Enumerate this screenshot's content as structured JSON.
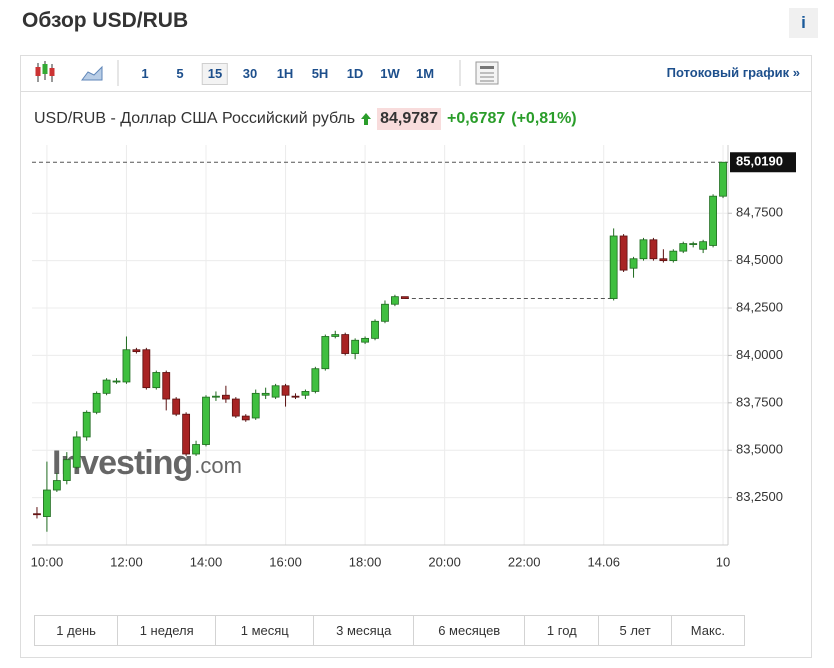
{
  "header": {
    "title": "Обзор USD/RUB",
    "info": "i"
  },
  "toolbar": {
    "intervals": [
      "1",
      "5",
      "15",
      "30",
      "1H",
      "5H",
      "1D",
      "1W",
      "1M"
    ],
    "selected": "15",
    "streaming_link": "Потоковый график »"
  },
  "quote": {
    "name": "USD/RUB - Доллар США Российский рубль",
    "price": "84,9787",
    "change": "+0,6787",
    "change_pct": "(+0,81%)"
  },
  "chart_data": {
    "type": "candlestick",
    "categories": [
      null,
      "10:00",
      null,
      null,
      null,
      null,
      null,
      null,
      null,
      "12:00",
      null,
      null,
      null,
      null,
      null,
      null,
      null,
      "14:00",
      null,
      null,
      null,
      null,
      null,
      null,
      null,
      "16:00",
      null,
      null,
      null,
      null,
      null,
      null,
      null,
      "18:00",
      null,
      null,
      null,
      null,
      null,
      null,
      null,
      "20:00",
      null,
      null,
      null,
      null,
      null,
      null,
      null,
      "22:00",
      null,
      null,
      null,
      null,
      null,
      null,
      null,
      "14.06",
      null,
      null,
      null,
      null,
      null,
      null,
      null,
      null,
      null,
      null,
      null,
      "10"
    ],
    "open": [
      83.165,
      83.15,
      83.29,
      83.34,
      83.41,
      83.57,
      83.7,
      83.8,
      83.86,
      83.86,
      84.03,
      84.03,
      83.83,
      83.91,
      83.77,
      83.69,
      83.48,
      83.53,
      83.78,
      83.79,
      83.77,
      83.68,
      83.67,
      83.79,
      83.78,
      83.84,
      83.785,
      83.79,
      83.81,
      83.93,
      84.1,
      84.11,
      84.01,
      84.07,
      84.09,
      84.18,
      84.27,
      84.31,
      null,
      null,
      null,
      null,
      null,
      null,
      null,
      null,
      null,
      null,
      null,
      null,
      null,
      null,
      null,
      null,
      null,
      null,
      null,
      null,
      84.3,
      84.63,
      84.46,
      84.51,
      84.61,
      84.51,
      84.5,
      84.55,
      84.585,
      84.56,
      84.58,
      84.84
    ],
    "high": [
      83.2,
      83.44,
      83.38,
      83.49,
      83.6,
      83.71,
      83.81,
      83.88,
      83.88,
      84.1,
      84.04,
      84.04,
      83.92,
      83.92,
      83.78,
      83.7,
      83.55,
      83.79,
      83.81,
      83.84,
      83.78,
      83.69,
      83.82,
      83.83,
      83.85,
      83.85,
      83.8,
      83.82,
      83.94,
      84.11,
      84.13,
      84.12,
      84.09,
      84.1,
      84.19,
      84.29,
      84.32,
      84.31,
      null,
      null,
      null,
      null,
      null,
      null,
      null,
      null,
      null,
      null,
      null,
      null,
      null,
      null,
      null,
      null,
      null,
      null,
      null,
      null,
      84.67,
      84.64,
      84.52,
      84.62,
      84.62,
      84.56,
      84.56,
      84.6,
      84.6,
      84.61,
      84.85,
      85.02
    ],
    "low": [
      83.14,
      83.07,
      83.28,
      83.32,
      83.4,
      83.55,
      83.69,
      83.79,
      83.85,
      83.85,
      84.01,
      83.82,
      83.82,
      83.71,
      83.68,
      83.47,
      83.47,
      83.52,
      83.76,
      83.75,
      83.67,
      83.65,
      83.66,
      83.77,
      83.77,
      83.73,
      83.77,
      83.77,
      83.8,
      83.92,
      84.09,
      84.0,
      83.98,
      84.06,
      84.08,
      84.17,
      84.26,
      84.3,
      null,
      null,
      null,
      null,
      null,
      null,
      null,
      null,
      null,
      null,
      null,
      null,
      null,
      null,
      null,
      null,
      null,
      null,
      null,
      null,
      84.29,
      84.44,
      84.41,
      84.5,
      84.5,
      84.49,
      84.49,
      84.54,
      84.57,
      84.54,
      84.57,
      84.83
    ],
    "close": [
      83.16,
      83.29,
      83.34,
      83.45,
      83.57,
      83.7,
      83.8,
      83.87,
      83.865,
      84.03,
      84.02,
      83.83,
      83.91,
      83.77,
      83.69,
      83.48,
      83.53,
      83.78,
      83.785,
      83.77,
      83.68,
      83.66,
      83.8,
      83.8,
      83.84,
      83.79,
      83.78,
      83.81,
      83.93,
      84.1,
      84.11,
      84.01,
      84.08,
      84.09,
      84.18,
      84.27,
      84.31,
      84.3,
      null,
      null,
      null,
      null,
      null,
      null,
      null,
      null,
      null,
      null,
      null,
      null,
      null,
      null,
      null,
      null,
      null,
      null,
      null,
      null,
      84.63,
      84.45,
      84.51,
      84.61,
      84.51,
      84.5,
      84.55,
      84.59,
      84.59,
      84.6,
      84.84,
      85.019
    ],
    "ylim": [
      83.0,
      85.11
    ],
    "yticks": [
      {
        "value": 83.25,
        "label": "83,2500"
      },
      {
        "value": 83.5,
        "label": "83,5000"
      },
      {
        "value": 83.75,
        "label": "83,7500"
      },
      {
        "value": 84,
        "label": "84,0000"
      },
      {
        "value": 84.25,
        "label": "84,2500"
      },
      {
        "value": 84.5,
        "label": "84,5000"
      },
      {
        "value": 84.75,
        "label": "84,7500"
      }
    ],
    "last_price": {
      "value": 85.019,
      "label": "85,0190"
    },
    "up_color": "#3fbf3f",
    "down_color": "#a82424",
    "grid": true,
    "watermark": {
      "brand": "Investing",
      "domain": ".com"
    }
  },
  "ranges": [
    "1 день",
    "1 неделя",
    "1 месяц",
    "3 месяца",
    "6 месяцев",
    "1 год",
    "5 лет",
    "Макс."
  ]
}
